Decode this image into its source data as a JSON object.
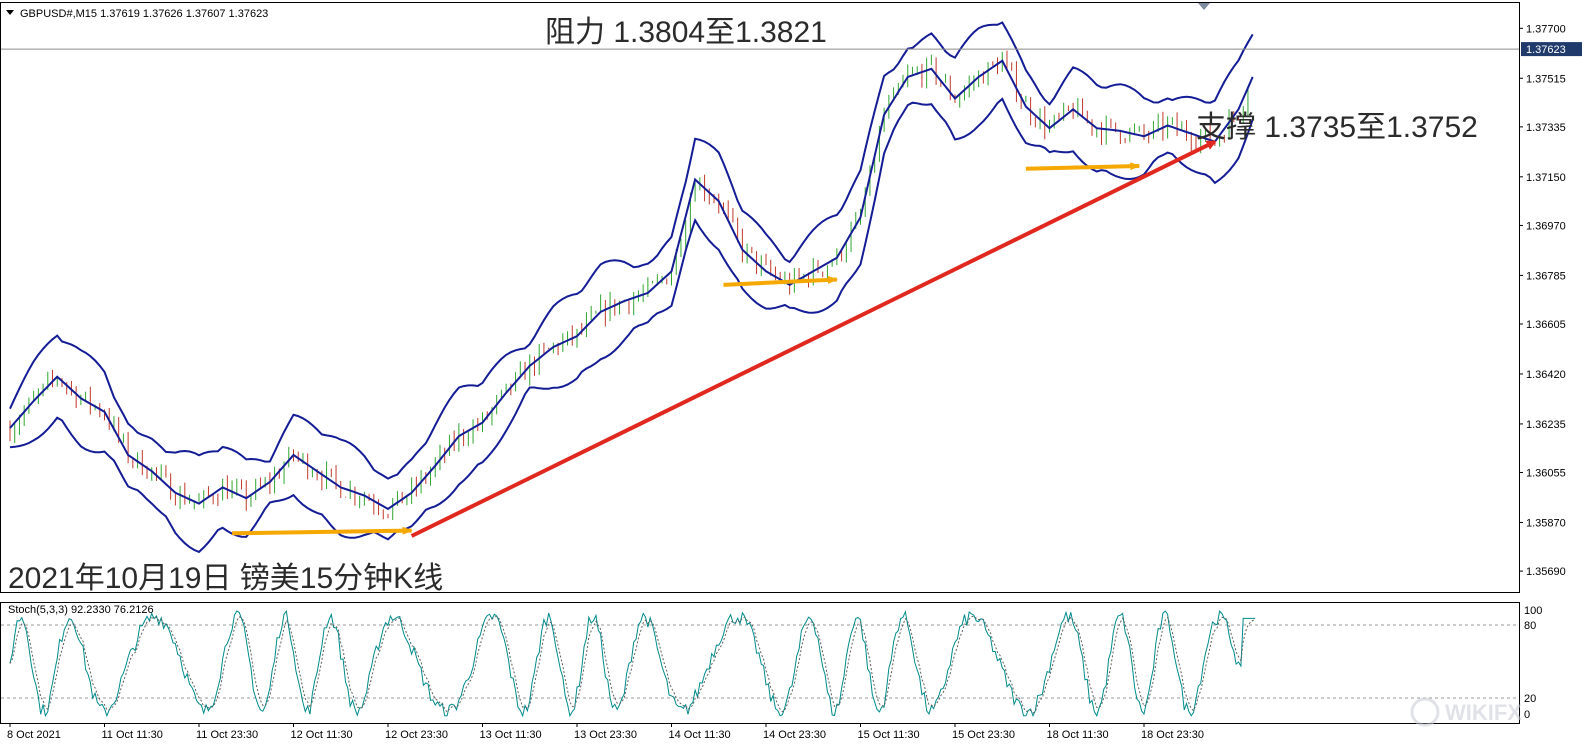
{
  "window": {
    "symbol_line": "GBPUSD#,M15  1.37619 1.37626 1.37607 1.37623",
    "current_price": "1.37623"
  },
  "annotations": {
    "resistance": "阻力 1.3804至1.3821",
    "support": "支撑 1.3735至1.3752",
    "caption": "2021年10月19日 镑美15分钟K线",
    "watermark": "WIKIFX"
  },
  "stoch_panel": {
    "label": "Stoch(5,3,3) 92.2330 76.2126",
    "levels": [
      "100",
      "80",
      "20",
      "0"
    ]
  },
  "colors": {
    "band": "#141c96",
    "bull_candle": "#2fa52f",
    "bear_candle": "#c0392b",
    "trendline": "#e0281e",
    "support_arrow": "#f5a800",
    "price_tag_bg": "#1f3a6b",
    "stoch_main": "#008b8b",
    "stoch_signal": "#606060"
  },
  "chart_data": {
    "type": "candlestick",
    "symbol": "GBPUSD#",
    "timeframe": "M15",
    "ohlc_last": {
      "open": 1.37619,
      "high": 1.37626,
      "low": 1.37607,
      "close": 1.37623
    },
    "y_ticks": [
      "1.37700",
      "1.37515",
      "1.37335",
      "1.37150",
      "1.36970",
      "1.36785",
      "1.36605",
      "1.36420",
      "1.36235",
      "1.36055",
      "1.35870",
      "1.35690"
    ],
    "ylim": [
      1.3562,
      1.3779
    ],
    "x_ticks": [
      "8 Oct 2021",
      "11 Oct 11:30",
      "11 Oct 23:30",
      "12 Oct 11:30",
      "12 Oct 23:30",
      "13 Oct 11:30",
      "13 Oct 23:30",
      "14 Oct 11:30",
      "14 Oct 23:30",
      "15 Oct 11:30",
      "15 Oct 23:30",
      "18 Oct 11:30",
      "18 Oct 23:30"
    ],
    "middle_band": [
      [
        0,
        1.3622
      ],
      [
        0.25,
        1.3632
      ],
      [
        0.5,
        1.3641
      ],
      [
        0.75,
        1.3633
      ],
      [
        1,
        1.3628
      ],
      [
        1.25,
        1.3612
      ],
      [
        1.5,
        1.3606
      ],
      [
        1.75,
        1.3598
      ],
      [
        2,
        1.3594
      ],
      [
        2.25,
        1.36
      ],
      [
        2.5,
        1.3596
      ],
      [
        2.75,
        1.3602
      ],
      [
        3,
        1.3612
      ],
      [
        3.25,
        1.3606
      ],
      [
        3.5,
        1.36
      ],
      [
        3.75,
        1.3597
      ],
      [
        4,
        1.3592
      ],
      [
        4.25,
        1.3598
      ],
      [
        4.5,
        1.3608
      ],
      [
        4.75,
        1.3619
      ],
      [
        5,
        1.3624
      ],
      [
        5.25,
        1.3635
      ],
      [
        5.5,
        1.3645
      ],
      [
        5.75,
        1.3652
      ],
      [
        6,
        1.3656
      ],
      [
        6.25,
        1.3665
      ],
      [
        6.5,
        1.3669
      ],
      [
        6.75,
        1.3672
      ],
      [
        7,
        1.368
      ],
      [
        7.25,
        1.3714
      ],
      [
        7.5,
        1.3706
      ],
      [
        7.75,
        1.3688
      ],
      [
        8,
        1.368
      ],
      [
        8.25,
        1.3675
      ],
      [
        8.5,
        1.368
      ],
      [
        8.75,
        1.3685
      ],
      [
        9,
        1.37
      ],
      [
        9.25,
        1.3738
      ],
      [
        9.5,
        1.3752
      ],
      [
        9.75,
        1.3755
      ],
      [
        10,
        1.3744
      ],
      [
        10.25,
        1.3752
      ],
      [
        10.5,
        1.3758
      ],
      [
        10.75,
        1.3741
      ],
      [
        11,
        1.3733
      ],
      [
        11.25,
        1.374
      ],
      [
        11.5,
        1.3733
      ],
      [
        11.75,
        1.3732
      ],
      [
        12,
        1.373
      ],
      [
        12.25,
        1.3734
      ],
      [
        12.5,
        1.3731
      ],
      [
        12.75,
        1.3728
      ],
      [
        13,
        1.374
      ],
      [
        13.25,
        1.376
      ]
    ],
    "band_half_width": 0.0013,
    "support_zone_arrows": [
      {
        "from": [
          2.35,
          1.3583
        ],
        "to": [
          4.25,
          1.3584
        ]
      },
      {
        "from": [
          7.55,
          1.3675
        ],
        "to": [
          8.75,
          1.3677
        ]
      },
      {
        "from": [
          10.75,
          1.3718
        ],
        "to": [
          11.95,
          1.3719
        ]
      }
    ],
    "trendline": {
      "from": [
        4.25,
        1.3582
      ],
      "to": [
        12.75,
        1.3728
      ]
    },
    "current_price_line": 1.37623,
    "stochastic": {
      "k_last": 92.233,
      "d_last": 76.2126,
      "levels": [
        100,
        80,
        20,
        0
      ]
    }
  }
}
